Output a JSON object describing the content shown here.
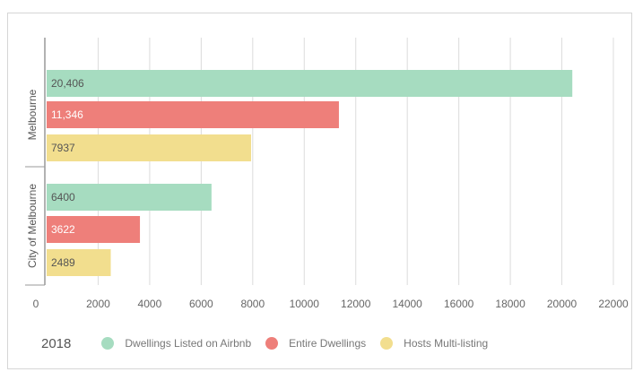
{
  "chart_data": {
    "type": "bar",
    "orientation": "horizontal",
    "groups": [
      "Melbourne",
      "City of Melbourne"
    ],
    "year": "2018",
    "series": [
      {
        "name": "Dwellings Listed on Airbnb",
        "color": "#a6dcc0",
        "values": [
          20406,
          6400
        ],
        "labels": [
          "20,406",
          "6400"
        ]
      },
      {
        "name": "Entire Dwellings",
        "color": "#ee7f7a",
        "values": [
          11346,
          3622
        ],
        "labels": [
          "11,346",
          "3622"
        ]
      },
      {
        "name": "Hosts Multi-listing",
        "color": "#f2de8e",
        "values": [
          7937,
          2489
        ],
        "labels": [
          "7937",
          "2489"
        ]
      }
    ],
    "xlim": [
      0,
      22000
    ],
    "xticks": [
      0,
      2000,
      4000,
      6000,
      8000,
      10000,
      12000,
      14000,
      16000,
      18000,
      20000,
      22000
    ],
    "grid": true,
    "legend_position": "bottom-left",
    "title": "",
    "xlabel": "",
    "ylabel": ""
  }
}
